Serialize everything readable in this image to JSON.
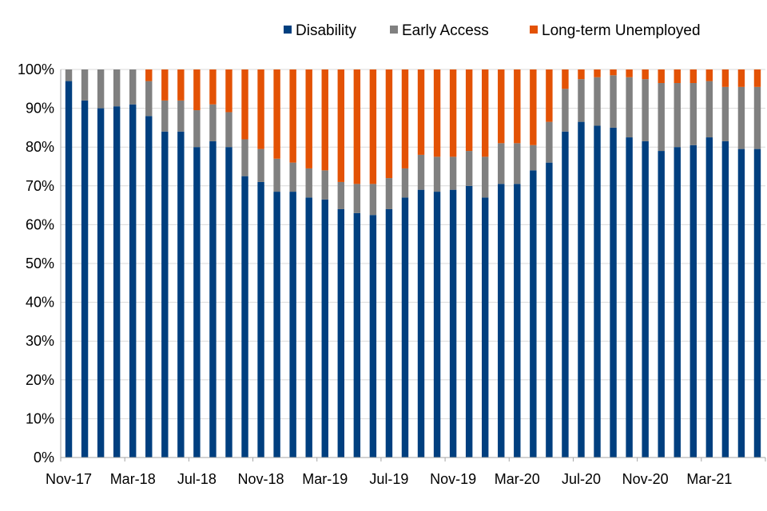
{
  "chart_data": {
    "type": "bar",
    "stacked": true,
    "percent_stacked": true,
    "categories": [
      "Nov-17",
      "Dec-17",
      "Jan-18",
      "Feb-18",
      "Mar-18",
      "Apr-18",
      "May-18",
      "Jun-18",
      "Jul-18",
      "Aug-18",
      "Sep-18",
      "Oct-18",
      "Nov-18",
      "Dec-18",
      "Jan-19",
      "Feb-19",
      "Mar-19",
      "Apr-19",
      "May-19",
      "Jun-19",
      "Jul-19",
      "Aug-19",
      "Sep-19",
      "Oct-19",
      "Nov-19",
      "Dec-19",
      "Jan-20",
      "Feb-20",
      "Mar-20",
      "Apr-20",
      "May-20",
      "Jun-20",
      "Jul-20",
      "Aug-20",
      "Sep-20",
      "Oct-20",
      "Nov-20",
      "Dec-20",
      "Jan-21",
      "Feb-21",
      "Mar-21",
      "Apr-21",
      "May-21",
      "Jun-21"
    ],
    "x_tick_labels": [
      "Nov-17",
      "Mar-18",
      "Jul-18",
      "Nov-18",
      "Mar-19",
      "Jul-19",
      "Nov-19",
      "Mar-20",
      "Jul-20",
      "Nov-20",
      "Mar-21"
    ],
    "series": [
      {
        "name": "Disability",
        "color": "#003F7F",
        "values": [
          97,
          92,
          90,
          90.5,
          91,
          88,
          84,
          84,
          80,
          81.5,
          80,
          72.5,
          71,
          68.5,
          68.5,
          67,
          66.5,
          64,
          63,
          62.5,
          64,
          67,
          69,
          68.5,
          69,
          70,
          67,
          70.5,
          70.5,
          74,
          76,
          84,
          86.5,
          85.5,
          85,
          82.5,
          81.5,
          79,
          80,
          80.5,
          82.5,
          81.5,
          79.5,
          79.5
        ]
      },
      {
        "name": "Early Access",
        "color": "#808080",
        "values": [
          3,
          8,
          10,
          9.5,
          9,
          9,
          8,
          8,
          9.5,
          9.5,
          9,
          9.5,
          8.5,
          8.5,
          7.5,
          7.5,
          7.5,
          7,
          7.5,
          8,
          8,
          7.5,
          9,
          9,
          8.5,
          9,
          10.5,
          10.5,
          10.5,
          6.5,
          10.5,
          11,
          11,
          12.5,
          13.5,
          15.5,
          16,
          17.5,
          16.5,
          16,
          14.5,
          14,
          16,
          16
        ]
      },
      {
        "name": "Long-term Unemployed",
        "color": "#E35205",
        "values": [
          0,
          0,
          0,
          0,
          0,
          3,
          8,
          8,
          10.5,
          9,
          11,
          18,
          20.5,
          23,
          24,
          25.5,
          26,
          29,
          29.5,
          29.5,
          28,
          25.5,
          22,
          22.5,
          22.5,
          21,
          22.5,
          19,
          19,
          19.5,
          13.5,
          5,
          2.5,
          2,
          1.5,
          2,
          2.5,
          3.5,
          3.5,
          3.5,
          3,
          4.5,
          4.5,
          4.5
        ]
      }
    ],
    "y_tick_labels": [
      "0%",
      "10%",
      "20%",
      "30%",
      "40%",
      "50%",
      "60%",
      "70%",
      "80%",
      "90%",
      "100%"
    ],
    "ylim": [
      0,
      100
    ],
    "grid": true,
    "legend_position": "top-right",
    "title": "",
    "xlabel": "",
    "ylabel": ""
  }
}
